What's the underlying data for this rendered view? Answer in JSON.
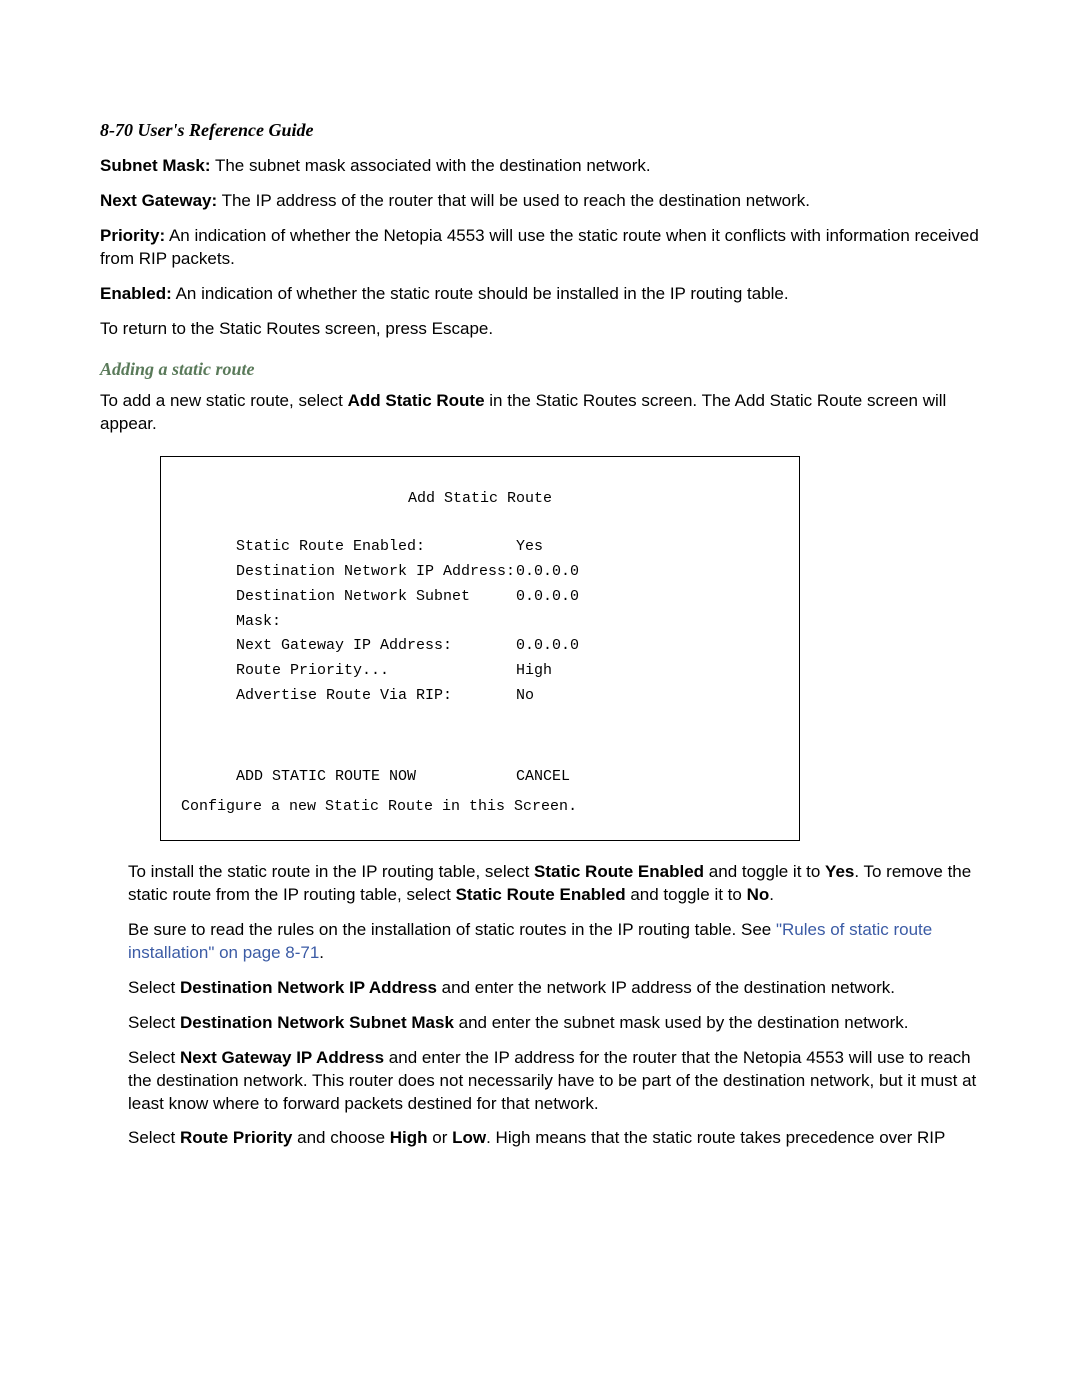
{
  "header": "8-70  User's Reference Guide",
  "definitions": {
    "subnet_mask_label": "Subnet Mask:",
    "subnet_mask_text": " The subnet mask associated with the destination network.",
    "next_gateway_label": "Next Gateway:",
    "next_gateway_text": " The IP address of the router that will be used to reach the destination network.",
    "priority_label": "Priority:",
    "priority_text": " An indication of whether the Netopia 4553 will use the static route when it conflicts with information received from RIP packets.",
    "enabled_label": "Enabled:",
    "enabled_text": " An indication of whether the static route should be installed in the IP routing table.",
    "return_text": "To return to the Static Routes screen, press Escape."
  },
  "section": {
    "heading": "Adding a static route",
    "intro_pre": "To add a new static route, select ",
    "intro_bold": "Add Static Route",
    "intro_post": " in the Static Routes screen. The Add Static Route screen will appear."
  },
  "screen": {
    "title": "Add Static Route",
    "rows": [
      {
        "label": "Static Route Enabled:",
        "value": "Yes"
      },
      {
        "label": "Destination Network IP Address:",
        "value": "0.0.0.0"
      },
      {
        "label": "Destination Network Subnet Mask:",
        "value": "0.0.0.0"
      },
      {
        "label": "Next Gateway IP Address:",
        "value": "0.0.0.0"
      },
      {
        "label": "Route Priority...",
        "value": "High"
      },
      {
        "label": "Advertise Route Via RIP:",
        "value": "No"
      }
    ],
    "action_left": "ADD STATIC ROUTE NOW",
    "action_right": "CANCEL",
    "footer": "Configure a new Static Route in this Screen."
  },
  "body": {
    "p1_pre": "To install the static route in the IP routing table, select ",
    "p1_b1": "Static Route Enabled",
    "p1_mid1": " and toggle it to ",
    "p1_b2": "Yes",
    "p1_mid2": ". To remove the static route from the IP routing table, select ",
    "p1_b3": "Static Route Enabled",
    "p1_mid3": " and toggle it to ",
    "p1_b4": "No",
    "p1_end": ".",
    "p2_pre": "Be sure to read the rules on the installation of static routes in the IP routing table. See ",
    "p2_link": "\"Rules of static route installation\" on page 8-71",
    "p2_end": ".",
    "p3_pre": "Select ",
    "p3_b": "Destination Network IP Address",
    "p3_post": " and enter the network IP address of the destination network.",
    "p4_pre": "Select ",
    "p4_b": "Destination Network Subnet Mask",
    "p4_post": " and enter the subnet mask used by the destination network.",
    "p5_pre": "Select ",
    "p5_b": "Next Gateway IP Address",
    "p5_post": " and enter the IP address for the router that the Netopia 4553 will use to reach the destination network. This router does not necessarily have to be part of the destination network, but it must at least know where to forward packets destined for that network.",
    "p6_pre": "Select ",
    "p6_b1": "Route Priority",
    "p6_mid1": " and choose ",
    "p6_b2": "High",
    "p6_mid2": " or ",
    "p6_b3": "Low",
    "p6_post": ". High means that the static route takes precedence over RIP"
  }
}
